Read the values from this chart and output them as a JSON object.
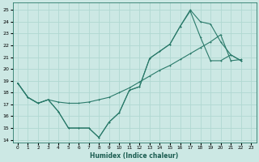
{
  "xlabel": "Humidex (Indice chaleur)",
  "bg_color": "#cce8e4",
  "grid_color": "#b0d8d2",
  "line_color": "#2a7a6a",
  "xlim": [
    -0.5,
    23.5
  ],
  "ylim": [
    13.8,
    25.6
  ],
  "xticks": [
    0,
    1,
    2,
    3,
    4,
    5,
    6,
    7,
    8,
    9,
    10,
    11,
    12,
    13,
    14,
    15,
    16,
    17,
    18,
    19,
    20,
    21,
    22,
    23
  ],
  "yticks": [
    14,
    15,
    16,
    17,
    18,
    19,
    20,
    21,
    22,
    23,
    24,
    25
  ],
  "line_straight_x": [
    0,
    1,
    2,
    3,
    4,
    5,
    6,
    7,
    8,
    9,
    10,
    11,
    12,
    13,
    14,
    15,
    16,
    17,
    18,
    19,
    20,
    21,
    22
  ],
  "line_straight_y": [
    18.8,
    17.6,
    17.1,
    17.4,
    17.2,
    17.1,
    17.1,
    17.2,
    17.4,
    17.6,
    18.0,
    18.4,
    18.9,
    19.4,
    19.9,
    20.3,
    20.8,
    21.3,
    21.8,
    22.3,
    22.9,
    20.7,
    20.8
  ],
  "line_jagged_x": [
    0,
    1,
    2,
    3,
    4,
    5,
    6,
    7,
    8,
    9,
    10,
    11,
    12,
    13,
    14,
    15,
    16,
    17,
    18,
    19,
    20,
    21,
    22
  ],
  "line_jagged_y": [
    18.8,
    17.6,
    17.1,
    17.4,
    16.4,
    15.0,
    15.0,
    15.0,
    14.2,
    15.5,
    16.3,
    18.2,
    18.5,
    20.9,
    21.5,
    22.1,
    23.6,
    24.9,
    22.7,
    20.7,
    20.7,
    21.2,
    20.7
  ],
  "line_peak_x": [
    0,
    1,
    2,
    3,
    4,
    5,
    6,
    7,
    8,
    9,
    10,
    11,
    12,
    13,
    14,
    15,
    16,
    17,
    18,
    19,
    20,
    21,
    22
  ],
  "line_peak_y": [
    18.8,
    17.6,
    17.1,
    17.4,
    16.4,
    15.0,
    15.0,
    15.0,
    14.2,
    15.5,
    16.3,
    18.2,
    18.5,
    20.9,
    21.5,
    22.1,
    23.6,
    25.0,
    24.0,
    23.8,
    22.3,
    21.2,
    20.7
  ]
}
